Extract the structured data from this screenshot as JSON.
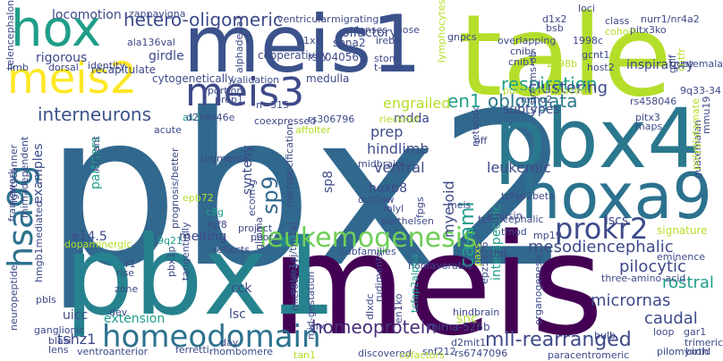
{
  "palette": [
    "#440154",
    "#482878",
    "#3e4a89",
    "#31688e",
    "#26828e",
    "#1f9e89",
    "#35b779",
    "#6ece58",
    "#b5de2b",
    "#fde725"
  ],
  "words": [
    {
      "text": "pbx2",
      "color": "#31688e"
    },
    {
      "text": "meis",
      "color": "#440154"
    },
    {
      "text": "tale",
      "color": "#b5de2b"
    },
    {
      "text": "pbx1",
      "color": "#26828e"
    },
    {
      "text": "pbx4",
      "color": "#2a788e"
    },
    {
      "text": "meis1",
      "color": "#3b528b"
    },
    {
      "text": "hoxa9",
      "color": "#2c728e"
    },
    {
      "text": "hox",
      "color": "#1f9e89"
    },
    {
      "text": "meis2",
      "color": "#fde725"
    },
    {
      "text": "meis3",
      "color": "#3e4a89"
    },
    {
      "text": "homeodomain",
      "color": "#2c728e"
    },
    {
      "text": "hsa9g",
      "color": "#2c728e"
    },
    {
      "text": "leukemogenesis",
      "color": "#6ece58"
    },
    {
      "text": "prokr2",
      "color": "#3e4a89"
    },
    {
      "text": "homeoprotein",
      "color": "#472d7b"
    },
    {
      "text": "mll-rearranged",
      "color": "#3e4a89"
    },
    {
      "text": "interneurons",
      "color": "#3b528b"
    },
    {
      "text": "hetero-oligomeric",
      "color": "#3e4a89"
    },
    {
      "text": "respiration",
      "color": "#1f9e89"
    },
    {
      "text": "en1",
      "color": "#1f9e89"
    },
    {
      "text": "oblongata",
      "color": "#2a788e"
    },
    {
      "text": "ca-aml",
      "color": "#1f9e89"
    },
    {
      "text": "sp9",
      "color": "#31688e"
    },
    {
      "text": "mesodiencephalic",
      "color": "#3e4a89"
    },
    {
      "text": "pilocytic",
      "color": "#3e4a89"
    },
    {
      "text": "rostral",
      "color": "#1f9e89"
    },
    {
      "text": "micrornas",
      "color": "#3e4a89"
    },
    {
      "text": "caudal",
      "color": "#3e4a89"
    },
    {
      "text": "clustering",
      "color": "#3e4a89"
    },
    {
      "text": "engrailed",
      "color": "#b5de2b"
    },
    {
      "text": "hindlimb",
      "color": "#3e4a89"
    },
    {
      "text": "leukemic",
      "color": "#3e4a89"
    },
    {
      "text": "myeloid",
      "color": "#3e4a89"
    },
    {
      "text": "ventral",
      "color": "#3e4a89"
    },
    {
      "text": "prep",
      "color": "#3e4a89"
    },
    {
      "text": "hoxb8",
      "color": "#3e4a89"
    },
    {
      "text": "melting",
      "color": "#3e4a89"
    },
    {
      "text": "synteny",
      "color": "#3e4a89"
    },
    {
      "text": "olfactory",
      "color": "#3e4a89"
    },
    {
      "text": "girdle",
      "color": "#3e4a89"
    },
    {
      "text": "rigorous",
      "color": "#3e4a89"
    },
    {
      "text": "locomotion",
      "color": "#3e4a89"
    },
    {
      "text": "inspiratory",
      "color": "#3e4a89"
    },
    {
      "text": "tshz1",
      "color": "#3e4a89"
    },
    {
      "text": "extension",
      "color": "#1f9e89"
    },
    {
      "text": "cck",
      "color": "#3e4a89"
    },
    {
      "text": "lsc",
      "color": "#3e4a89"
    },
    {
      "text": "lscs",
      "color": "#3e4a89"
    },
    {
      "text": "mdda",
      "color": "#3e4a89"
    },
    {
      "text": "subtypes",
      "color": "#3e4a89"
    },
    {
      "text": "uicc",
      "color": "#3e4a89"
    },
    {
      "text": "partners",
      "color": "#1f9e89"
    },
    {
      "text": "examples",
      "color": "#3e4a89"
    },
    {
      "text": "sp8",
      "color": "#3e4a89"
    },
    {
      "text": "interspecific",
      "color": "#1f9e89"
    },
    {
      "text": "e14.5",
      "color": "#3e4a89"
    },
    {
      "text": "snc",
      "color": "#b5de2b"
    },
    {
      "text": "medulla",
      "color": "#3e4a89"
    },
    {
      "text": "cooperativity",
      "color": "#3e4a89"
    },
    {
      "text": "recapitulate",
      "color": "#3e4a89"
    },
    {
      "text": "cytogenetically",
      "color": "#3e4a89"
    },
    {
      "text": "spna2",
      "color": "#3e4a89"
    },
    {
      "text": "rs7040561",
      "color": "#3e4a89"
    },
    {
      "text": "gnpcs",
      "color": "#3e4a89"
    },
    {
      "text": "overlapping",
      "color": "#3e4a89"
    },
    {
      "text": "1998c",
      "color": "#3e4a89"
    },
    {
      "text": "cnibs",
      "color": "#3e4a89"
    },
    {
      "text": "cnib1",
      "color": "#3e4a89"
    },
    {
      "text": "gcnt1",
      "color": "#3e4a89"
    },
    {
      "text": "host2",
      "color": "#3e4a89"
    },
    {
      "text": "guatemala",
      "color": "#3e4a89"
    },
    {
      "text": "ala136val",
      "color": "#3e4a89"
    },
    {
      "text": "zappavigna",
      "color": "#3e4a89"
    },
    {
      "text": "irebp",
      "color": "#3e4a89"
    },
    {
      "text": "loose",
      "color": "#3e4a89"
    },
    {
      "text": "lenses",
      "color": "#3e4a89"
    },
    {
      "text": "validation",
      "color": "#3e4a89"
    },
    {
      "text": "prep1",
      "color": "#3e4a89"
    },
    {
      "text": "ak3",
      "color": "#1f9e89"
    },
    {
      "text": "d2h9s46e",
      "color": "#3e4a89"
    },
    {
      "text": "rs306796",
      "color": "#3e4a89"
    },
    {
      "text": "rieckhof",
      "color": "#b5de2b"
    },
    {
      "text": "midbrain",
      "color": "#3e4a89"
    },
    {
      "text": "tcfap2beta",
      "color": "#3e4a89"
    },
    {
      "text": "lengsin",
      "color": "#3e4a89"
    },
    {
      "text": "v-svz-rms-ob",
      "color": "#3e4a89"
    },
    {
      "text": "fpgs",
      "color": "#3e4a89"
    },
    {
      "text": "telencephalic",
      "color": "#3e4a89"
    },
    {
      "text": "folyl",
      "color": "#3e4a89"
    },
    {
      "text": "berthelsen",
      "color": "#3e4a89"
    },
    {
      "text": "outflow",
      "color": "#3e4a89"
    },
    {
      "text": "epb72",
      "color": "#b5de2b"
    },
    {
      "text": "c8g",
      "color": "#1f9e89"
    },
    {
      "text": "fgf8",
      "color": "#3e4a89"
    },
    {
      "text": "kurrant",
      "color": "#3e4a89"
    },
    {
      "text": "lightscanner",
      "color": "#3e4a89"
    },
    {
      "text": "mirnadependent",
      "color": "#3e4a89"
    },
    {
      "text": "prognosis/better",
      "color": "#3e4a89"
    },
    {
      "text": "dopaminergic",
      "color": "#b5de2b"
    },
    {
      "text": "9q21",
      "color": "#1f9e89"
    },
    {
      "text": "subfamilies",
      "color": "#3e4a89"
    },
    {
      "text": "nonfavorable",
      "color": "#3e4a89"
    },
    {
      "text": "reflects",
      "color": "#3e4a89"
    },
    {
      "text": "poor",
      "color": "#3e4a89"
    },
    {
      "text": "glioma",
      "color": "#3e4a89"
    },
    {
      "text": "pbx1p",
      "color": "#3e4a89"
    },
    {
      "text": "rise",
      "color": "#3e4a89"
    },
    {
      "text": "zone",
      "color": "#3e4a89"
    },
    {
      "text": "r1",
      "color": "#3e4a89"
    },
    {
      "text": "pbls",
      "color": "#3e4a89"
    },
    {
      "text": "hmgb1mediated",
      "color": "#3e4a89"
    },
    {
      "text": "ganglionic",
      "color": "#3e4a89"
    },
    {
      "text": "neuropeptide",
      "color": "#3e4a89"
    },
    {
      "text": "ventroanterior",
      "color": "#3e4a89"
    },
    {
      "text": "rhombomere",
      "color": "#3e4a89"
    },
    {
      "text": "tcfap2alpha",
      "color": "#1f9e89"
    },
    {
      "text": "mirna-526b",
      "color": "#3e4a89"
    },
    {
      "text": "d2mit1",
      "color": "#3e4a89"
    },
    {
      "text": "snf212",
      "color": "#3e4a89"
    },
    {
      "text": "rs6747096",
      "color": "#3e4a89"
    },
    {
      "text": "hindbrain",
      "color": "#3e4a89"
    },
    {
      "text": "en1ko",
      "color": "#3e4a89"
    },
    {
      "text": "discovered",
      "color": "#3e4a89"
    },
    {
      "text": "tan1",
      "color": "#b5de2b"
    },
    {
      "text": "cofactors",
      "color": "#b5de2b"
    },
    {
      "text": "paracentromeric",
      "color": "#3e4a89"
    },
    {
      "text": "signature",
      "color": "#b5de2b"
    },
    {
      "text": "eminence",
      "color": "#3e4a89"
    },
    {
      "text": "three-amino-acid",
      "color": "#3e4a89"
    },
    {
      "text": "organogenesis",
      "color": "#3e4a89"
    },
    {
      "text": "bulb",
      "color": "#3e4a89"
    },
    {
      "text": "loop",
      "color": "#3e4a89"
    },
    {
      "text": "gar1",
      "color": "#3e4a89"
    },
    {
      "text": "trimeric",
      "color": "#3e4a89"
    },
    {
      "text": "birth",
      "color": "#3e4a89"
    },
    {
      "text": "mp19",
      "color": "#3e4a89"
    },
    {
      "text": "chd",
      "color": "#3e4a89"
    },
    {
      "text": "epz5676",
      "color": "#3e4a89"
    },
    {
      "text": "mid-gestation",
      "color": "#3e4a89"
    },
    {
      "text": "guatemalan",
      "color": "#3e4a89"
    },
    {
      "text": "mmu19",
      "color": "#3e4a89"
    },
    {
      "text": "9q33-34",
      "color": "#3e4a89"
    },
    {
      "text": "rs458046",
      "color": "#3e4a89"
    },
    {
      "text": "polyglutamate",
      "color": "#b5de2b"
    },
    {
      "text": "pitx3",
      "color": "#3e4a89"
    },
    {
      "text": "maps",
      "color": "#3e4a89"
    },
    {
      "text": "nurr1/nr4a2",
      "color": "#3e4a89"
    },
    {
      "text": "pitx3ko",
      "color": "#3e4a89"
    },
    {
      "text": "class",
      "color": "#3e4a89"
    },
    {
      "text": "cohort",
      "color": "#b5de2b"
    },
    {
      "text": "bsb",
      "color": "#3e4a89"
    },
    {
      "text": "d1x2",
      "color": "#3e4a89"
    },
    {
      "text": "loci",
      "color": "#3e4a89"
    },
    {
      "text": "migrating",
      "color": "#3e4a89"
    },
    {
      "text": "ventricular",
      "color": "#3e4a89"
    },
    {
      "text": "telencephalon",
      "color": "#3e4a89"
    },
    {
      "text": "limb",
      "color": "#3e4a89"
    },
    {
      "text": "dorsal",
      "color": "#3e4a89"
    },
    {
      "text": "identity",
      "color": "#3e4a89"
    },
    {
      "text": "d1x1",
      "color": "#3e4a89"
    },
    {
      "text": "stom",
      "color": "#3e4a89"
    },
    {
      "text": "t-ucrs",
      "color": "#3e4a89"
    },
    {
      "text": "golf",
      "color": "#3e4a89"
    },
    {
      "text": "cntfr",
      "color": "#b5de2b"
    },
    {
      "text": "punctureinduced",
      "color": "#b5de2b"
    },
    {
      "text": "mmu2",
      "color": "#3e4a89"
    },
    {
      "text": "portion",
      "color": "#3e4a89"
    },
    {
      "text": "n=315",
      "color": "#3e4a89"
    },
    {
      "text": "acute",
      "color": "#3e4a89"
    },
    {
      "text": "coexpressed",
      "color": "#3e4a89"
    },
    {
      "text": "affolter",
      "color": "#b5de2b"
    },
    {
      "text": "tegmental",
      "color": "#3e4a89"
    },
    {
      "text": "overspecification",
      "color": "#3e4a89"
    },
    {
      "text": "framework",
      "color": "#3e4a89"
    },
    {
      "text": "project",
      "color": "#3e4a89"
    },
    {
      "text": "dev",
      "color": "#3e4a89"
    },
    {
      "text": "blasi",
      "color": "#3e4a89"
    },
    {
      "text": "lens",
      "color": "#3e4a89"
    },
    {
      "text": "ferretti",
      "color": "#3e4a89"
    },
    {
      "text": "day",
      "color": "#3e4a89"
    },
    {
      "text": "arx",
      "color": "#3e4a89"
    },
    {
      "text": "pilomyxoid",
      "color": "#3e4a89"
    },
    {
      "text": "network",
      "color": "#3e4a89"
    },
    {
      "text": "tmod",
      "color": "#3e4a89"
    },
    {
      "text": "ecom-g",
      "color": "#3e4a89"
    },
    {
      "text": "tangentially",
      "color": "#3e4a89"
    },
    {
      "text": "entm1aj/tm1aj",
      "color": "#3e4a89"
    },
    {
      "text": "microarray",
      "color": "#3e4a89"
    },
    {
      "text": "paxs",
      "color": "#b5de2b"
    },
    {
      "text": "dlxdc",
      "color": "#3e4a89"
    },
    {
      "text": "rudiments",
      "color": "#3e4a89"
    },
    {
      "text": "alphadelta1",
      "color": "#3e4a89"
    },
    {
      "text": "1998b",
      "color": "#b5de2b"
    },
    {
      "text": "meis",
      "color": "#3e4a89"
    },
    {
      "text": "lymphocytes",
      "color": "#b5de2b"
    },
    {
      "text": "off",
      "color": "#3e4a89"
    }
  ]
}
